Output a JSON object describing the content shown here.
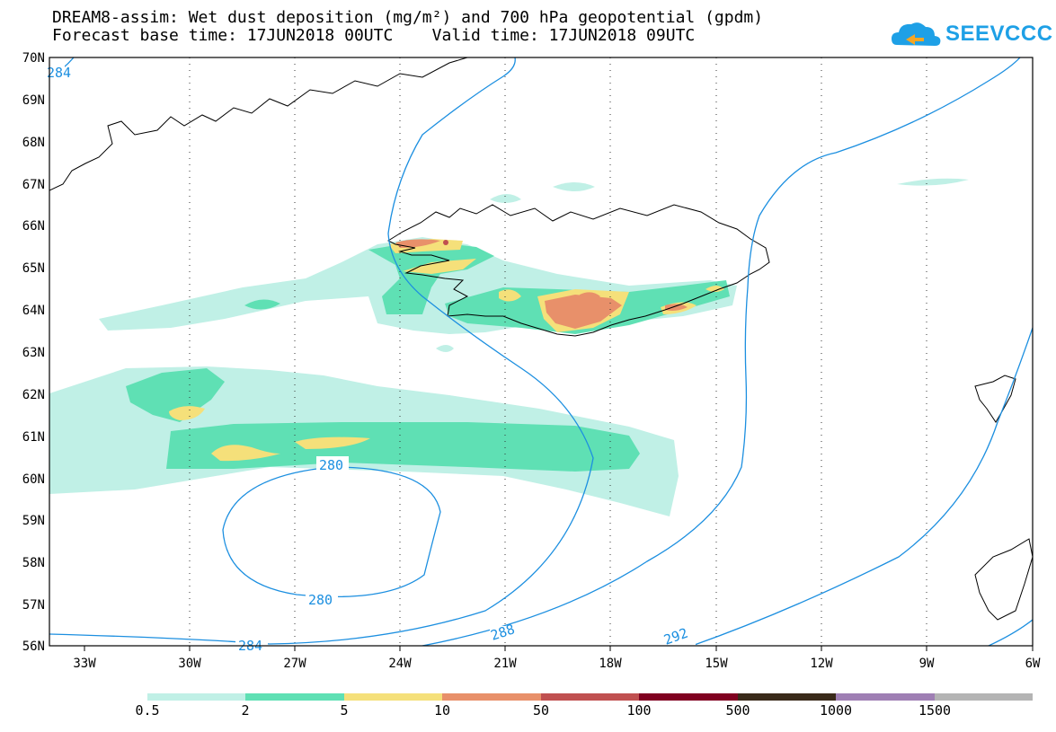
{
  "title": {
    "line1": "DREAM8-assim: Wet dust deposition (mg/m²) and 700 hPa geopotential (gpdm)",
    "line2": "Forecast base time: 17JUN2018 00UTC    Valid time: 17JUN2018 09UTC"
  },
  "logo": {
    "text": "SEEVCCC",
    "icon": "cloud-icon",
    "color": "#1ea0e6"
  },
  "map": {
    "lat_labels": [
      "70N",
      "69N",
      "68N",
      "67N",
      "66N",
      "65N",
      "64N",
      "63N",
      "62N",
      "61N",
      "60N",
      "59N",
      "58N",
      "57N",
      "56N"
    ],
    "lon_labels": [
      "33W",
      "30W",
      "27W",
      "24W",
      "21W",
      "18W",
      "15W",
      "12W",
      "9W",
      "6W"
    ],
    "contour_labels": [
      "284",
      "280",
      "280",
      "284",
      "288",
      "292"
    ],
    "contour_color": "#1c8fe0"
  },
  "legend": {
    "labels": [
      "0.5",
      "2",
      "5",
      "10",
      "50",
      "100",
      "500",
      "1000",
      "1500"
    ],
    "colors": [
      "#c0f0e6",
      "#5fe0b4",
      "#f5e07a",
      "#e8906a",
      "#c05050",
      "#800020",
      "#3a2a1a",
      "#9f7fb4",
      "#b4b4b4"
    ]
  }
}
